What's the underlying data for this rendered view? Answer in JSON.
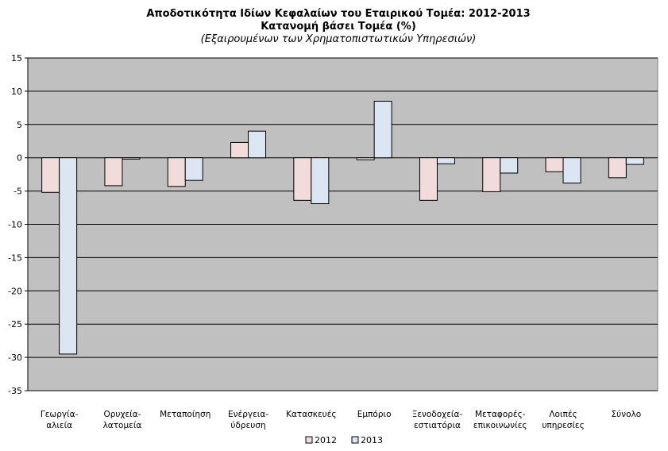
{
  "chart_data": {
    "type": "bar",
    "title": "Αποδοτικότητα Ιδίων Κεφαλαίων του Εταιρικού Τομέα: 2012-2013",
    "subtitle": "Κατανομή βάσει Τομέα (%)",
    "subtitle2": "(Εξαιρουμένων των Χρηματοπιστωτικών Υπηρεσιών)",
    "categories": [
      [
        "Γεωργία-",
        "αλιεία"
      ],
      [
        "Ορυχεία-",
        "λατομεία"
      ],
      [
        "Μεταποίηση"
      ],
      [
        "Ενέργεια-",
        "ύδρευση"
      ],
      [
        "Κατασκευές"
      ],
      [
        "Εμπόριο"
      ],
      [
        "Ξενοδοχεία-",
        "εστιατόρια"
      ],
      [
        "Μεταφορές-",
        "επικοινωνίες"
      ],
      [
        "Λοιπές",
        "υπηρεσίες"
      ],
      [
        "Σύνολο"
      ]
    ],
    "series": [
      {
        "name": "2012",
        "color": "#f2dcdb",
        "values": [
          -5.2,
          -4.2,
          -4.3,
          2.3,
          -6.4,
          -0.3,
          -6.4,
          -5.1,
          -2.1,
          -3.0
        ]
      },
      {
        "name": "2013",
        "color": "#dce6f2",
        "values": [
          -29.5,
          -0.2,
          -3.4,
          4.0,
          -6.9,
          8.5,
          -0.9,
          -2.3,
          -3.8,
          -1.0
        ]
      }
    ],
    "ylim": [
      -35,
      15
    ],
    "yticks": [
      15,
      10,
      5,
      0,
      -5,
      -10,
      -15,
      -20,
      -25,
      -30,
      -35
    ],
    "grid": true,
    "plot_background": "#c0c0c0",
    "legend_position": "bottom"
  }
}
